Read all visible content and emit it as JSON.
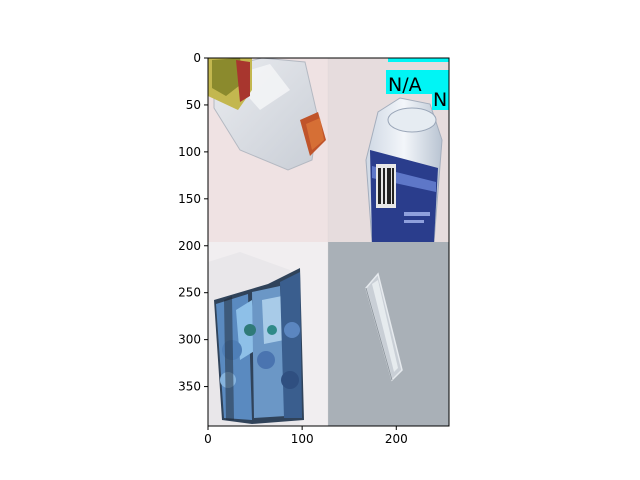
{
  "figure": {
    "x_ticks": [
      "0",
      "100",
      "200"
    ],
    "y_ticks": [
      "0",
      "50",
      "100",
      "150",
      "200",
      "250",
      "300",
      "350"
    ],
    "x_range": [
      0,
      256
    ],
    "y_range": [
      392,
      0
    ],
    "overlay_labels": [
      {
        "text": "N/A"
      },
      {
        "text": "N"
      }
    ],
    "panels": [
      {
        "content": "plastic-jug-with-orange-cap"
      },
      {
        "content": "clear-bottle-with-blue-label"
      },
      {
        "content": "crumpled-blue-floral-paper"
      },
      {
        "content": "glass-rod-on-grey-surface"
      }
    ],
    "colors": {
      "overlay_box": "#00f5f5",
      "panel_pink_bg": "#ecdfe0",
      "panel_grey_bg": "#a9b0b7",
      "bottle_blue": "#2a3d8c",
      "cap_orange": "#c0542a"
    }
  }
}
